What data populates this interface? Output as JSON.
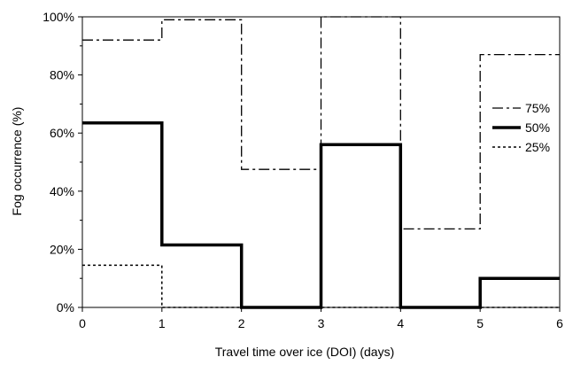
{
  "chart_data": {
    "type": "line",
    "step": true,
    "xlabel": "Travel time over ice (DOI)  (days)",
    "ylabel": "Fog occurrence  (%)",
    "xlim": [
      0,
      6
    ],
    "ylim": [
      0,
      100
    ],
    "x_ticks": [
      "0",
      "1",
      "2",
      "3",
      "4",
      "5",
      "6"
    ],
    "y_ticks": [
      "0%",
      "20%",
      "40%",
      "60%",
      "80%",
      "100%"
    ],
    "grid": false,
    "legend_position": "right",
    "series": [
      {
        "name": "75%",
        "style": "dash-dot",
        "color": "#000000",
        "values": [
          92,
          99,
          47.5,
          100,
          27,
          87
        ]
      },
      {
        "name": "50%",
        "style": "solid-thick",
        "color": "#000000",
        "values": [
          63.5,
          21.5,
          0,
          56,
          0,
          10
        ]
      },
      {
        "name": "25%",
        "style": "dotted",
        "color": "#000000",
        "values": [
          14.5,
          0,
          0,
          0,
          0,
          0
        ]
      }
    ]
  }
}
